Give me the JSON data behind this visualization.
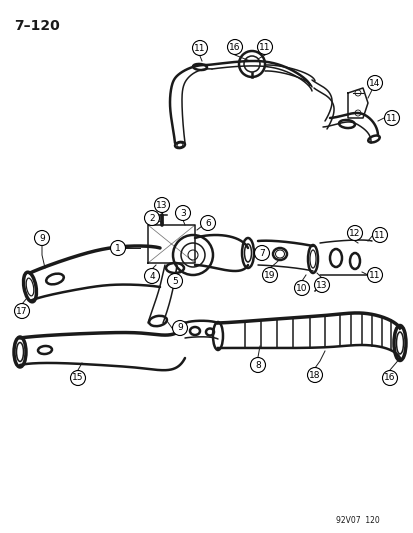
{
  "title": "7–120",
  "subtitle": "92V07  120",
  "bg_color": "#ffffff",
  "fg_color": "#1a1a1a",
  "fig_width": 4.14,
  "fig_height": 5.33,
  "dpi": 100
}
